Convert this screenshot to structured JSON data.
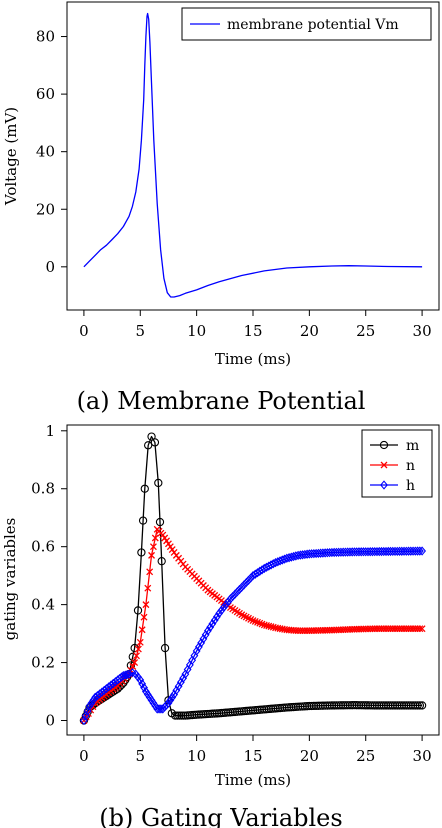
{
  "chart_data": [
    {
      "type": "line",
      "caption": "(a) Membrane Potential",
      "xlabel": "Time (ms)",
      "ylabel": "Voltage (mV)",
      "xlim": [
        -1.5,
        31.5
      ],
      "ylim": [
        -15,
        92
      ],
      "xticks": [
        0,
        5,
        10,
        15,
        20,
        25,
        30
      ],
      "yticks": [
        0,
        20,
        40,
        60,
        80
      ],
      "legend_position": "top-right",
      "series": [
        {
          "name": "membrane potential Vm",
          "color": "#0000ff",
          "x": [
            0,
            0.5,
            1,
            1.5,
            2,
            2.5,
            3,
            3.5,
            4,
            4.3,
            4.6,
            4.9,
            5.1,
            5.3,
            5.4,
            5.5,
            5.6,
            5.65,
            5.75,
            5.85,
            6,
            6.2,
            6.5,
            6.8,
            7.1,
            7.4,
            7.7,
            8,
            8.5,
            9,
            10,
            11,
            12,
            14,
            16,
            18,
            20,
            22,
            23.5,
            25,
            27,
            30
          ],
          "y": [
            0,
            2,
            4,
            6,
            7.5,
            9.5,
            11.5,
            14,
            17.5,
            21,
            26,
            34,
            44,
            58,
            70,
            80,
            87,
            88,
            86,
            78,
            64,
            44,
            22,
            6,
            -4,
            -9,
            -10.5,
            -10.5,
            -10,
            -9.2,
            -8,
            -6.5,
            -5.2,
            -3,
            -1.4,
            -0.4,
            0,
            0.3,
            0.4,
            0.3,
            0.1,
            0
          ]
        }
      ]
    },
    {
      "type": "line",
      "caption": "(b) Gating Variables",
      "xlabel": "Time (ms)",
      "ylabel": "gating variables",
      "xlim": [
        -1.5,
        31.5
      ],
      "ylim": [
        -0.05,
        1.02
      ],
      "xticks": [
        0,
        5,
        10,
        15,
        20,
        25,
        30
      ],
      "yticks": [
        0,
        0.2,
        0.4,
        0.6,
        0.8,
        1
      ],
      "ytick_labels": [
        "0",
        "0.2",
        "0.4",
        "0.6",
        "0.8",
        "1"
      ],
      "legend_position": "top-right",
      "series": [
        {
          "name": "m",
          "color": "#000000",
          "marker": "circle",
          "x": [
            0,
            0.5,
            1,
            2,
            3,
            3.5,
            4,
            4.5,
            4.8,
            5.1,
            5.4,
            5.7,
            6,
            6.3,
            6.6,
            6.9,
            7.2,
            7.5,
            7.8,
            8.1,
            9,
            10,
            12,
            15,
            18,
            20,
            22,
            24,
            26,
            28,
            30
          ],
          "y": [
            0,
            0.045,
            0.06,
            0.085,
            0.11,
            0.13,
            0.16,
            0.25,
            0.38,
            0.58,
            0.8,
            0.95,
            0.98,
            0.96,
            0.82,
            0.55,
            0.25,
            0.07,
            0.025,
            0.017,
            0.017,
            0.02,
            0.025,
            0.035,
            0.045,
            0.05,
            0.052,
            0.053,
            0.052,
            0.052,
            0.052
          ]
        },
        {
          "name": "n",
          "color": "#ff0000",
          "marker": "x",
          "x": [
            0,
            1,
            2,
            3,
            4,
            4.5,
            5,
            5.5,
            6,
            6.5,
            7,
            7.5,
            8,
            9,
            10,
            11,
            12,
            13,
            14,
            15,
            16,
            17,
            18,
            19,
            20,
            22,
            24,
            26,
            28,
            30
          ],
          "y": [
            0,
            0.06,
            0.09,
            0.12,
            0.16,
            0.2,
            0.27,
            0.4,
            0.57,
            0.66,
            0.64,
            0.61,
            0.58,
            0.53,
            0.49,
            0.45,
            0.42,
            0.39,
            0.365,
            0.345,
            0.33,
            0.32,
            0.313,
            0.31,
            0.31,
            0.312,
            0.315,
            0.317,
            0.317,
            0.317
          ]
        },
        {
          "name": "h",
          "color": "#0000ff",
          "marker": "diamond",
          "x": [
            0,
            0.5,
            1,
            2,
            3,
            3.5,
            4,
            4.3,
            4.6,
            5,
            5.5,
            6,
            6.5,
            7,
            7.5,
            8,
            9,
            10,
            11,
            12,
            13,
            14,
            15,
            16,
            17,
            18,
            19,
            20,
            22,
            24,
            26,
            28,
            30
          ],
          "y": [
            0,
            0.05,
            0.08,
            0.11,
            0.14,
            0.155,
            0.16,
            0.165,
            0.16,
            0.14,
            0.1,
            0.07,
            0.04,
            0.04,
            0.06,
            0.09,
            0.16,
            0.24,
            0.31,
            0.37,
            0.42,
            0.46,
            0.5,
            0.525,
            0.545,
            0.56,
            0.57,
            0.575,
            0.58,
            0.582,
            0.583,
            0.584,
            0.585
          ]
        }
      ]
    }
  ]
}
